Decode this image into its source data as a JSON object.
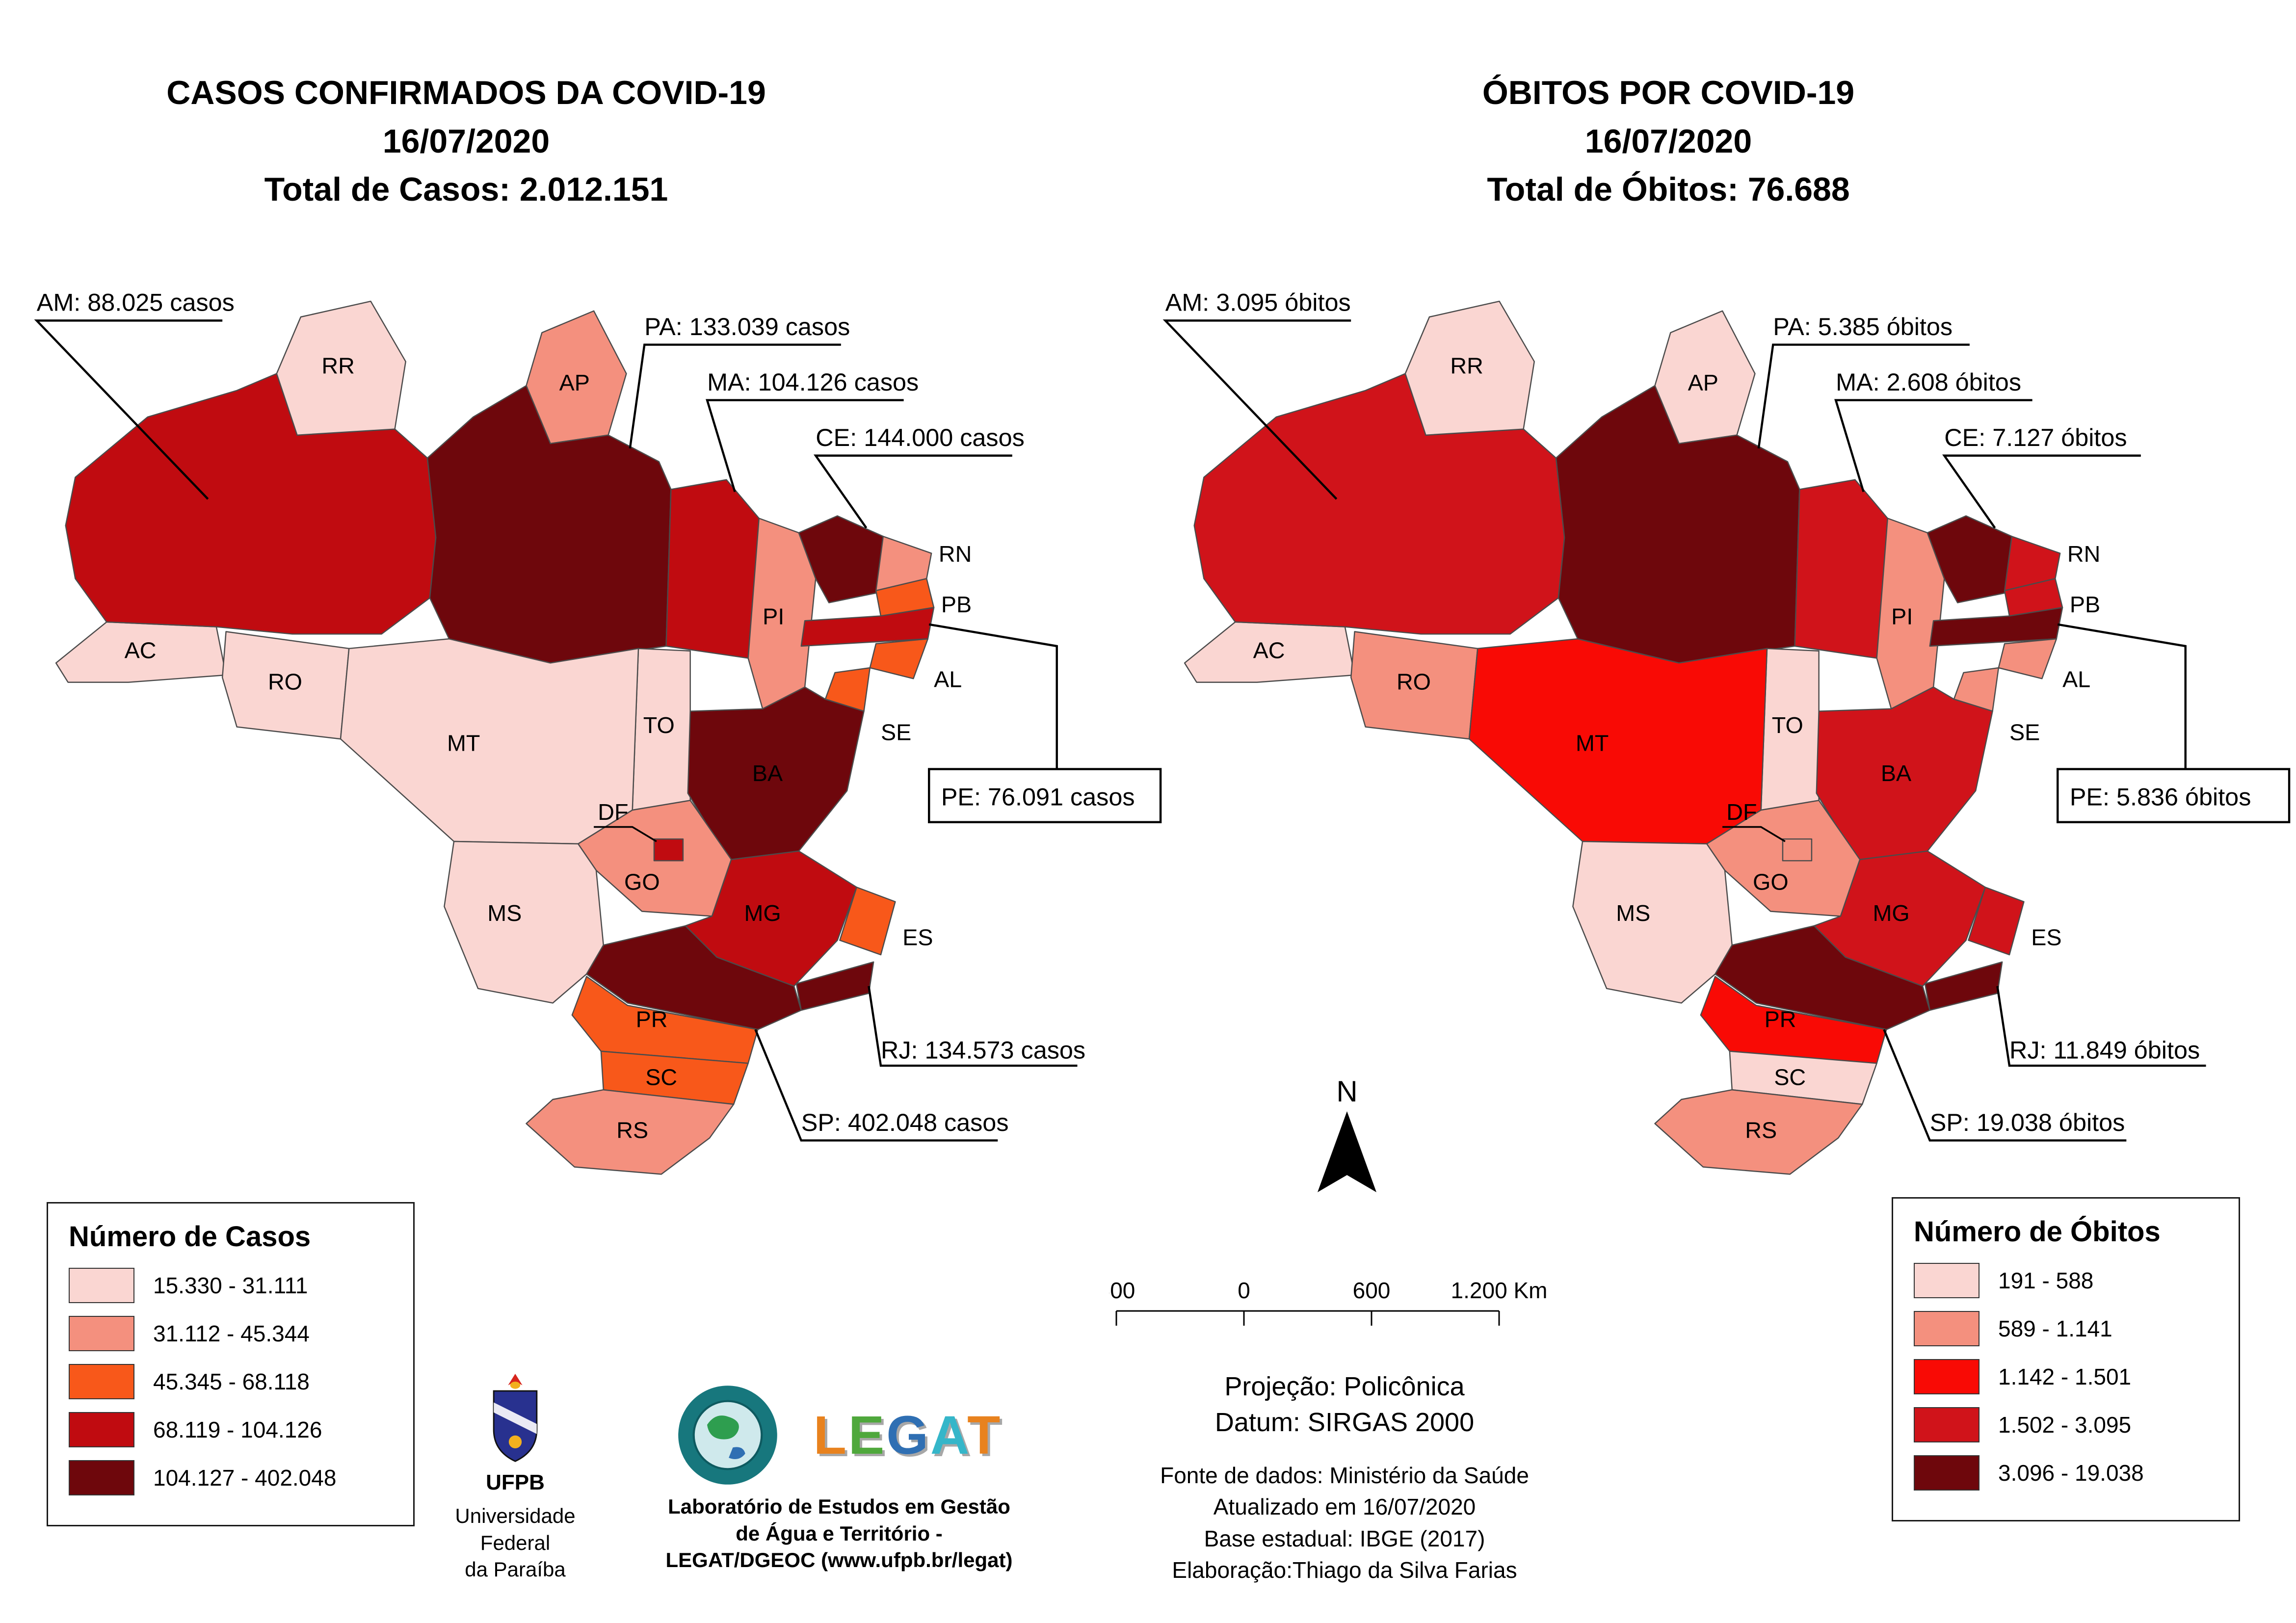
{
  "left_map": {
    "title_lines": [
      "CASOS CONFIRMADOS DA COVID-19",
      "16/07/2020",
      "Total de Casos: 2.012.151"
    ],
    "callouts": {
      "AM": "AM: 88.025 casos",
      "PA": "PA: 133.039 casos",
      "MA": "MA: 104.126 casos",
      "CE": "CE: 144.000 casos",
      "PE": "PE: 76.091 casos",
      "RJ": "RJ: 134.573 casos",
      "SP": "SP: 402.048 casos"
    },
    "legend": {
      "title": "Número de Casos",
      "classes": [
        {
          "range": "15.330 - 31.111",
          "color": "#FAD6D2"
        },
        {
          "range": "31.112 - 45.344",
          "color": "#F4907E"
        },
        {
          "range": "45.345 - 68.118",
          "color": "#F8581A"
        },
        {
          "range": "68.119 - 104.126",
          "color": "#C00B10"
        },
        {
          "range": "104.127 - 402.048",
          "color": "#6E070C"
        }
      ]
    },
    "state_classes": {
      "AC": 0,
      "AM": 3,
      "RR": 0,
      "RO": 0,
      "AP": 1,
      "PA": 4,
      "TO": 0,
      "MA": 3,
      "PI": 1,
      "CE": 4,
      "RN": 1,
      "PB": 2,
      "PE": 3,
      "AL": 2,
      "SE": 2,
      "BA": 4,
      "MT": 0,
      "GO": 1,
      "DF": 3,
      "MS": 0,
      "MG": 3,
      "ES": 2,
      "RJ": 4,
      "SP": 4,
      "PR": 2,
      "SC": 2,
      "RS": 1
    }
  },
  "right_map": {
    "title_lines": [
      "ÓBITOS POR COVID-19",
      "16/07/2020",
      "Total de Óbitos: 76.688"
    ],
    "callouts": {
      "AM": "AM: 3.095 óbitos",
      "PA": "PA: 5.385 óbitos",
      "MA": "MA: 2.608 óbitos",
      "CE": "CE: 7.127 óbitos",
      "PE": "PE: 5.836 óbitos",
      "RJ": "RJ: 11.849 óbitos",
      "SP": "SP: 19.038 óbitos"
    },
    "legend": {
      "title": "Número de Óbitos",
      "classes": [
        {
          "range": "191 - 588",
          "color": "#FAD6D2"
        },
        {
          "range": "589 - 1.141",
          "color": "#F4907E"
        },
        {
          "range": "1.142 - 1.501",
          "color": "#F90A05"
        },
        {
          "range": "1.502 - 3.095",
          "color": "#D0131A"
        },
        {
          "range": "3.096 - 19.038",
          "color": "#6E070C"
        }
      ]
    },
    "state_classes": {
      "AC": 0,
      "AM": 3,
      "RR": 0,
      "RO": 1,
      "AP": 0,
      "PA": 4,
      "TO": 0,
      "MA": 3,
      "PI": 1,
      "CE": 4,
      "RN": 3,
      "PB": 3,
      "PE": 4,
      "AL": 1,
      "SE": 1,
      "BA": 3,
      "MT": 2,
      "GO": 1,
      "DF": 1,
      "MS": 0,
      "MG": 3,
      "ES": 3,
      "RJ": 4,
      "SP": 4,
      "PR": 2,
      "SC": 0,
      "RS": 1
    }
  },
  "center": {
    "north_label": "N",
    "scalebar_labels": [
      "600",
      "0",
      "600",
      "1.200 Km"
    ],
    "projection_line1": "Projeção: Policônica",
    "projection_line2": "Datum: SIRGAS 2000",
    "source_lines": [
      "Fonte de dados: Ministério da Saúde",
      "Atualizado em 16/07/2020",
      "Base estadual: IBGE (2017)",
      "Elaboração:Thiago da Silva Farias"
    ]
  },
  "logos": {
    "ufpb_label": "UFPB",
    "ufpb_caption_lines": [
      "Universidade Federal",
      "da Paraíba"
    ],
    "legat_wordmark": "LEGAT",
    "legat_letter_colors": [
      "#E8821E",
      "#4FA83C",
      "#2F6FB3",
      "#35B6C9",
      "#E8821E"
    ],
    "legat_caption_lines": [
      "Laboratório de Estudos em Gestão",
      "de Água e Território -",
      "LEGAT/DGEOC (www.ufpb.br/legat)"
    ]
  }
}
